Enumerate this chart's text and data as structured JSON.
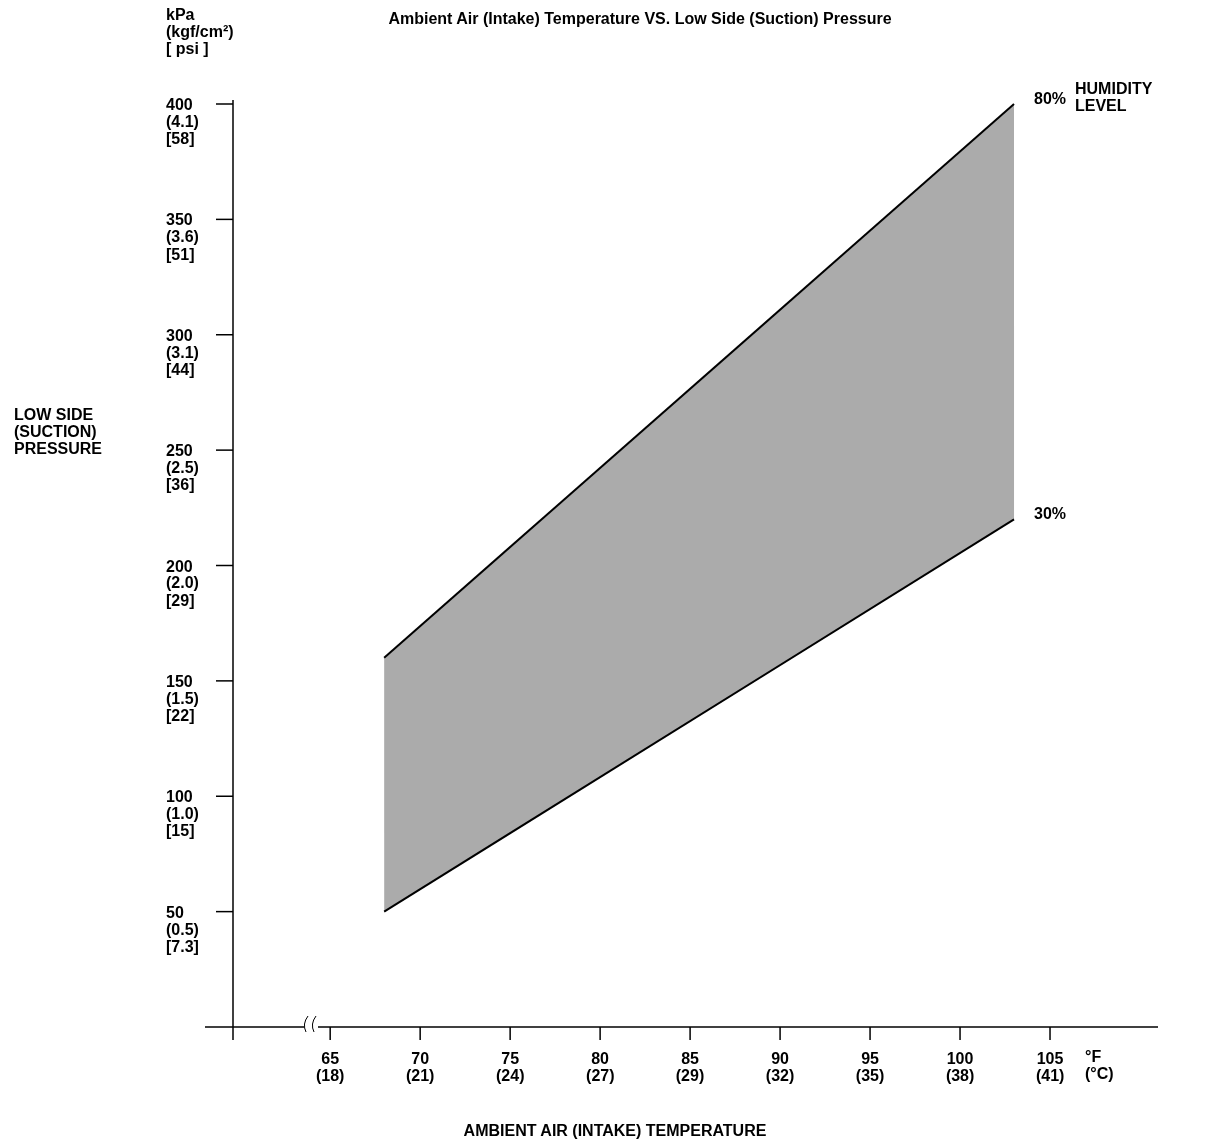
{
  "chart_data": {
    "type": "line",
    "title": "Ambient Air (Intake) Temperature VS. Low Side (Suction) Pressure",
    "xlabel": "AMBIENT AIR (INTAKE) TEMPERATURE",
    "ylabel": "LOW SIDE\n(SUCTION)\nPRESSURE",
    "legend_title": "HUMIDITY\nLEVEL",
    "annotations": [
      "kPa\n(kgf/cm²)\n[ psi ]",
      "°F\n(°C)"
    ],
    "x": [
      68,
      103
    ],
    "xlim": [
      59.6,
      111
    ],
    "ylim": [
      0,
      400
    ],
    "xticks": [
      65,
      70,
      75,
      80,
      85,
      90,
      95,
      100,
      105
    ],
    "x2lim": [
      15.33,
      43.89
    ],
    "x2ticks": [
      {
        "value": 18.33,
        "label": "(18)"
      },
      {
        "value": 21.11,
        "label": "(21)"
      },
      {
        "value": 23.89,
        "label": "(24)"
      },
      {
        "value": 26.67,
        "label": "(27)"
      },
      {
        "value": 29.44,
        "label": "(29)"
      },
      {
        "value": 32.22,
        "label": "(32)"
      },
      {
        "value": 35,
        "label": "(35)"
      },
      {
        "value": 37.78,
        "label": "(38)"
      },
      {
        "value": 40.56,
        "label": "(41)"
      }
    ],
    "yticks": [
      50,
      100,
      150,
      200,
      250,
      300,
      350,
      400
    ],
    "y2lim": [
      0.075,
      4.154
    ],
    "y2ticks": [
      {
        "value": 0.51,
        "label": "(0.5)"
      },
      {
        "value": 1.02,
        "label": "(1.0)"
      },
      {
        "value": 1.53,
        "label": "(1.5)"
      },
      {
        "value": 2.04,
        "label": "(2.0)"
      },
      {
        "value": 2.55,
        "label": "(2.5)"
      },
      {
        "value": 3.06,
        "label": "(3.1)"
      },
      {
        "value": 3.57,
        "label": "(3.6)"
      },
      {
        "value": 4.079,
        "label": "(4.1)"
      }
    ],
    "y3lim": [
      2.14,
      60.16
    ],
    "y3ticks": [
      {
        "value": 7.25,
        "label": "[7.3]"
      },
      {
        "value": 14.5,
        "label": "[15]"
      },
      {
        "value": 21.76,
        "label": "[22]"
      },
      {
        "value": 29.01,
        "label": "[29]"
      },
      {
        "value": 36.26,
        "label": "[36]"
      },
      {
        "value": 43.51,
        "label": "[44]"
      },
      {
        "value": 50.76,
        "label": "[51]"
      },
      {
        "value": 58.02,
        "label": "[58]"
      }
    ],
    "series": [
      {
        "name": "80%",
        "color": "#000000",
        "values": [
          160,
          400
        ],
        "lower": [
          50,
          220
        ],
        "upper": [
          160,
          400
        ]
      },
      {
        "name": "30%",
        "color": "#000000",
        "values": [
          50,
          220
        ]
      }
    ]
  }
}
